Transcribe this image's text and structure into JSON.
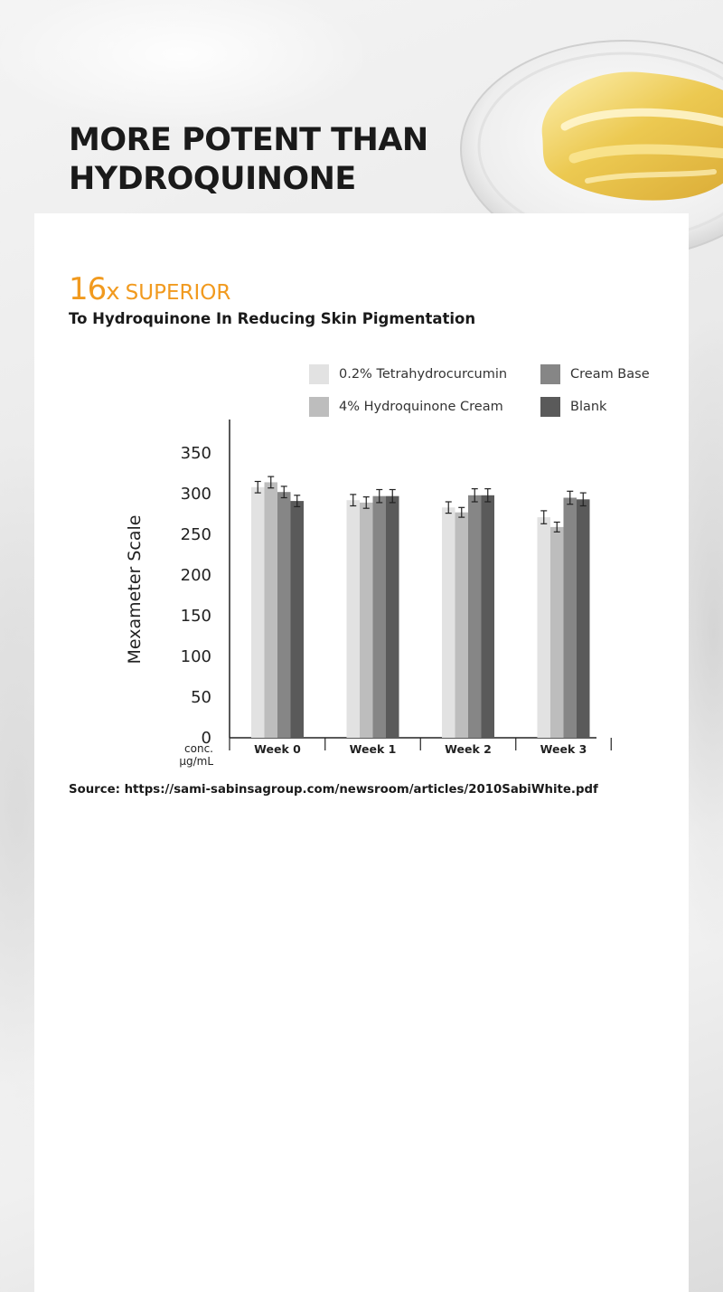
{
  "header": {
    "title_line1": "MORE POTENT THAN",
    "title_line2": "HYDROQUINONE"
  },
  "highlight": {
    "number": "16",
    "x": "x",
    "word": "SUPERIOR",
    "subtitle": "To Hydroquinone In Reducing Skin Pigmentation"
  },
  "colors": {
    "accent": "#f19a1f",
    "series": [
      "#e2e2e2",
      "#bdbdbd",
      "#868686",
      "#5a5a5a"
    ]
  },
  "chart_data": {
    "type": "bar",
    "ylabel": "Mexameter Scale",
    "xlabel": "",
    "x_corner_label_line1": "conc.",
    "x_corner_label_line2": "µg/mL",
    "ylim": [
      0,
      350
    ],
    "yticks": [
      0,
      50,
      100,
      150,
      200,
      250,
      300,
      350
    ],
    "grid": false,
    "legend_position": "top-right",
    "categories": [
      "Week 0",
      "Week 1",
      "Week 2",
      "Week 3"
    ],
    "series": [
      {
        "name": "0.2% Tetrahydrocurcumin",
        "values": [
          308,
          292,
          283,
          271
        ],
        "error": [
          7,
          7,
          7,
          8
        ]
      },
      {
        "name": "4% Hydroquinone Cream",
        "values": [
          314,
          289,
          277,
          259
        ],
        "error": [
          7,
          7,
          6,
          6
        ]
      },
      {
        "name": "Cream Base",
        "values": [
          302,
          297,
          298,
          295
        ],
        "error": [
          7,
          8,
          8,
          8
        ]
      },
      {
        "name": "Blank",
        "values": [
          291,
          297,
          298,
          293
        ],
        "error": [
          7,
          8,
          8,
          8
        ]
      }
    ]
  },
  "source": {
    "text": "Source: https://sami-sabinsagroup.com/newsroom/articles/2010SabiWhite.pdf"
  }
}
